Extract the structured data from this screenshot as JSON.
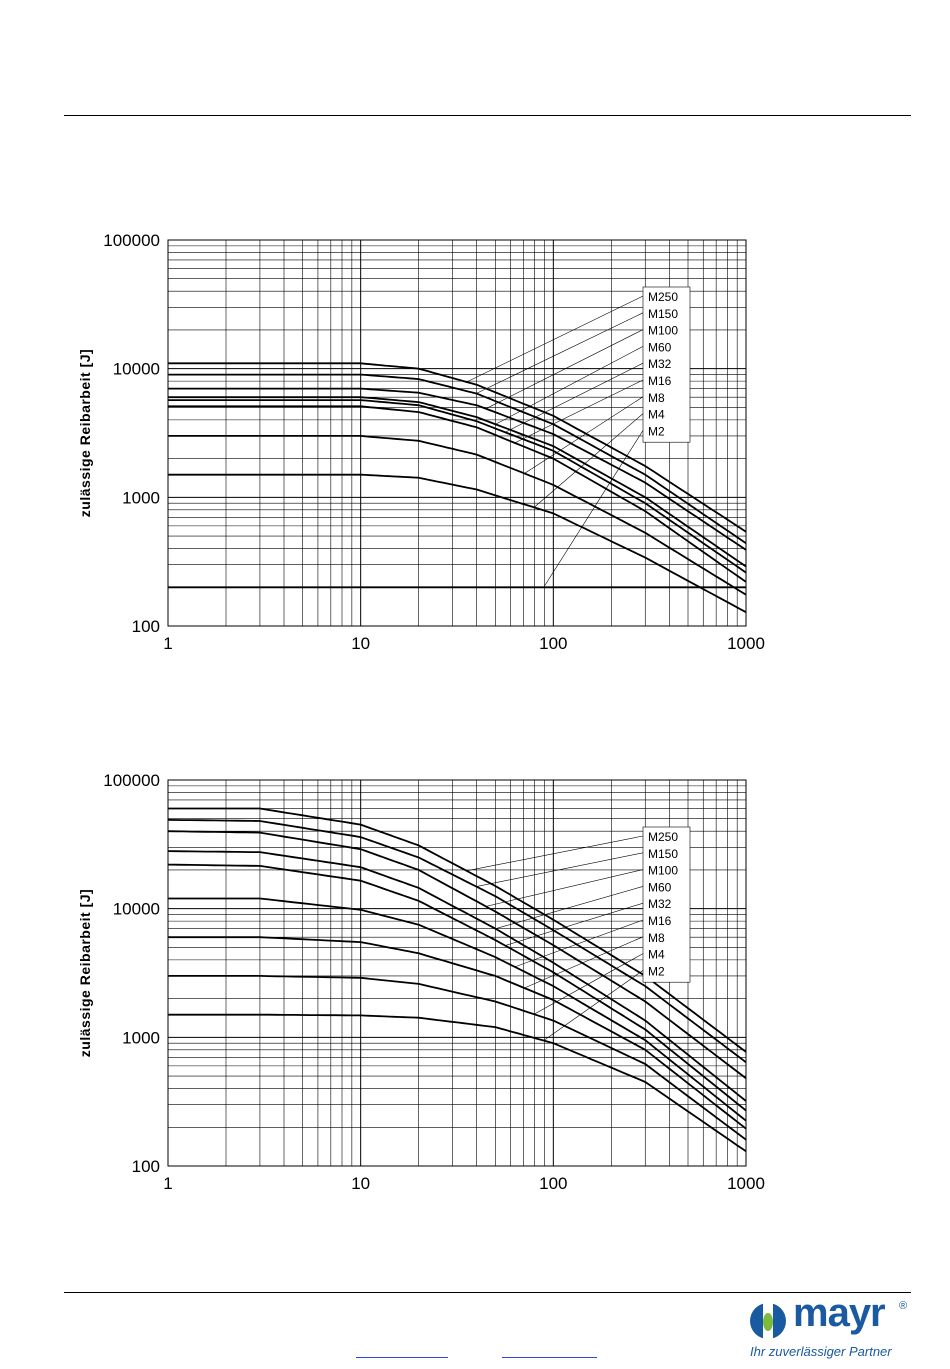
{
  "colors": {
    "grid": "#000000",
    "curve": "#000000",
    "brand": "#1a5aa0",
    "link": "#2a4bd7"
  },
  "brand": {
    "name": "mayr",
    "registered": "®",
    "tagline": "Ihr zuverlässiger Partner",
    "icon": "mayr-logo-icon"
  },
  "chart_data": [
    {
      "type": "line",
      "title": "",
      "xlabel": "",
      "ylabel": "zulässige Reibarbeit [J]",
      "xscale": "log",
      "yscale": "log",
      "xlim": [
        1,
        1000
      ],
      "ylim": [
        100,
        100000
      ],
      "xticks": [
        "1",
        "10",
        "100",
        "1000"
      ],
      "yticks": [
        "100",
        "1000",
        "10000",
        "100000"
      ],
      "grid": true,
      "legend": "right, labels with leader lines",
      "series": [
        {
          "name": "M250",
          "x": [
            1,
            10,
            20,
            40,
            100,
            300,
            1000
          ],
          "y": [
            11000,
            11000,
            10000,
            7500,
            4300,
            1750,
            540
          ]
        },
        {
          "name": "M150",
          "x": [
            1,
            10,
            20,
            40,
            100,
            300,
            1000
          ],
          "y": [
            9000,
            9000,
            8300,
            6400,
            3700,
            1500,
            440
          ]
        },
        {
          "name": "M100",
          "x": [
            1,
            10,
            20,
            40,
            100,
            300,
            1000
          ],
          "y": [
            7000,
            7000,
            6500,
            5200,
            3100,
            1300,
            390
          ]
        },
        {
          "name": "M60",
          "x": [
            1,
            10,
            20,
            40,
            100,
            300,
            1000
          ],
          "y": [
            6000,
            6000,
            5500,
            4200,
            2500,
            1000,
            290
          ]
        },
        {
          "name": "M32",
          "x": [
            1,
            10,
            20,
            40,
            100,
            300,
            1000
          ],
          "y": [
            5700,
            5700,
            5200,
            3900,
            2300,
            900,
            260
          ]
        },
        {
          "name": "M16",
          "x": [
            1,
            10,
            20,
            40,
            100,
            300,
            1000
          ],
          "y": [
            5100,
            5100,
            4600,
            3500,
            2000,
            780,
            220
          ]
        },
        {
          "name": "M8",
          "x": [
            1,
            10,
            20,
            40,
            100,
            300,
            1000
          ],
          "y": [
            3000,
            3000,
            2750,
            2150,
            1250,
            530,
            175
          ]
        },
        {
          "name": "M4",
          "x": [
            1,
            10,
            20,
            40,
            100,
            300,
            1000
          ],
          "y": [
            1500,
            1500,
            1420,
            1150,
            750,
            340,
            128
          ]
        },
        {
          "name": "M2",
          "x": [
            1,
            1000
          ],
          "y": [
            200,
            200
          ]
        }
      ]
    },
    {
      "type": "line",
      "title": "",
      "xlabel": "",
      "ylabel": "zulässige Reibarbeit [J]",
      "xscale": "log",
      "yscale": "log",
      "xlim": [
        1,
        1000
      ],
      "ylim": [
        100,
        100000
      ],
      "xticks": [
        "1",
        "10",
        "100",
        "1000"
      ],
      "yticks": [
        "100",
        "1000",
        "10000",
        "100000"
      ],
      "grid": true,
      "legend": "right, labels with leader lines",
      "series": [
        {
          "name": "M250",
          "x": [
            1,
            3,
            10,
            20,
            50,
            100,
            300,
            1000
          ],
          "y": [
            60000,
            60000,
            45000,
            31000,
            15000,
            8200,
            3000,
            770
          ]
        },
        {
          "name": "M150",
          "x": [
            1,
            3,
            10,
            20,
            50,
            100,
            300,
            1000
          ],
          "y": [
            49000,
            48000,
            36000,
            25000,
            12500,
            6800,
            2500,
            640
          ]
        },
        {
          "name": "M100",
          "x": [
            1,
            3,
            10,
            20,
            50,
            100,
            300,
            1000
          ],
          "y": [
            40000,
            39000,
            29000,
            20000,
            9500,
            5200,
            1900,
            480
          ]
        },
        {
          "name": "M60",
          "x": [
            1,
            3,
            10,
            20,
            50,
            100,
            300,
            1000
          ],
          "y": [
            28000,
            27500,
            21000,
            14500,
            7000,
            3800,
            1350,
            320
          ]
        },
        {
          "name": "M32",
          "x": [
            1,
            3,
            10,
            20,
            50,
            100,
            300,
            1000
          ],
          "y": [
            22000,
            21500,
            16500,
            11500,
            5700,
            3200,
            1150,
            270
          ]
        },
        {
          "name": "M16",
          "x": [
            1,
            3,
            10,
            20,
            50,
            100,
            300,
            1000
          ],
          "y": [
            12000,
            12000,
            9800,
            7500,
            4200,
            2500,
            950,
            225
          ]
        },
        {
          "name": "M8",
          "x": [
            1,
            3,
            10,
            20,
            50,
            100,
            300,
            1000
          ],
          "y": [
            6000,
            6000,
            5500,
            4500,
            3000,
            1950,
            800,
            195
          ]
        },
        {
          "name": "M4",
          "x": [
            1,
            3,
            10,
            20,
            50,
            100,
            300,
            1000
          ],
          "y": [
            3000,
            3000,
            2900,
            2600,
            1900,
            1350,
            620,
            160
          ]
        },
        {
          "name": "M2",
          "x": [
            1,
            3,
            10,
            20,
            50,
            100,
            300,
            1000
          ],
          "y": [
            1500,
            1500,
            1480,
            1420,
            1200,
            900,
            450,
            130
          ]
        }
      ]
    }
  ]
}
